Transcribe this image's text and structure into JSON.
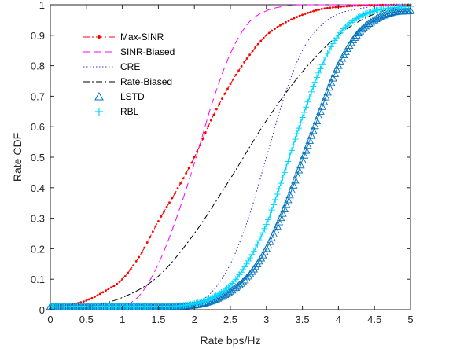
{
  "chart_data": {
    "type": "line",
    "title": "",
    "xlabel": "Rate bps/Hz",
    "ylabel": "Rate CDF",
    "xlim": [
      0,
      5
    ],
    "ylim": [
      0,
      1
    ],
    "xticks": [
      "0",
      "0.5",
      "1",
      "1.5",
      "2",
      "2.5",
      "3",
      "3.5",
      "4",
      "4.5",
      "5"
    ],
    "yticks": [
      "0",
      "0.1",
      "0.2",
      "0.3",
      "0.4",
      "0.5",
      "0.6",
      "0.7",
      "0.8",
      "0.9",
      "1"
    ],
    "grid": false,
    "legend_position": "top-left",
    "series": [
      {
        "name": "Max-SINR",
        "color": "#ff0000",
        "style": "dash-dot-marker",
        "x": [
          0,
          0.25,
          0.5,
          0.75,
          1.0,
          1.25,
          1.5,
          1.75,
          2.0,
          2.25,
          2.5,
          2.75,
          3.0,
          3.25,
          3.5,
          3.75,
          4.0,
          4.5,
          5.0
        ],
        "y": [
          0.01,
          0.015,
          0.03,
          0.06,
          0.1,
          0.18,
          0.29,
          0.39,
          0.5,
          0.63,
          0.74,
          0.83,
          0.9,
          0.94,
          0.967,
          0.985,
          0.993,
          0.999,
          1.0
        ]
      },
      {
        "name": "SINR-Biased",
        "color": "#ff00ff",
        "style": "dashed",
        "x": [
          0,
          0.75,
          1.0,
          1.25,
          1.5,
          1.75,
          2.0,
          2.25,
          2.5,
          2.75,
          3.0,
          3.25,
          3.5,
          4.0,
          5.0
        ],
        "y": [
          0,
          0.002,
          0.01,
          0.05,
          0.15,
          0.3,
          0.48,
          0.68,
          0.84,
          0.94,
          0.98,
          0.995,
          1.0,
          1.0,
          1.0
        ]
      },
      {
        "name": "CRE",
        "color": "#3333cc",
        "style": "dotted",
        "x": [
          0,
          1.5,
          2.0,
          2.25,
          2.5,
          2.75,
          3.0,
          3.25,
          3.5,
          3.75,
          4.0,
          4.25,
          4.5,
          5.0
        ],
        "y": [
          0,
          0.001,
          0.02,
          0.06,
          0.15,
          0.3,
          0.5,
          0.7,
          0.85,
          0.93,
          0.97,
          0.985,
          0.995,
          1.0
        ]
      },
      {
        "name": "Rate-Biased",
        "color": "#000000",
        "style": "dash-dot",
        "x": [
          0,
          0.5,
          1.0,
          1.5,
          2.0,
          2.5,
          3.0,
          3.5,
          4.0,
          4.5,
          5.0
        ],
        "y": [
          0.002,
          0.01,
          0.04,
          0.11,
          0.25,
          0.43,
          0.62,
          0.78,
          0.9,
          0.97,
          1.0
        ]
      },
      {
        "name": "LSTD",
        "color": "#0072bd",
        "style": "triangle-marker",
        "x": [
          0,
          1.5,
          2.0,
          2.25,
          2.5,
          2.75,
          3.0,
          3.25,
          3.5,
          3.75,
          4.0,
          4.25,
          4.5,
          4.75,
          5.0
        ],
        "y": [
          0.01,
          0.01,
          0.015,
          0.03,
          0.06,
          0.11,
          0.2,
          0.33,
          0.49,
          0.65,
          0.8,
          0.9,
          0.95,
          0.975,
          0.98
        ]
      },
      {
        "name": "RBL",
        "color": "#00d7ff",
        "style": "plus-marker",
        "x": [
          0,
          1.5,
          2.0,
          2.25,
          2.5,
          2.75,
          3.0,
          3.25,
          3.5,
          3.75,
          4.0,
          4.25,
          4.5,
          4.75,
          5.0
        ],
        "y": [
          0.01,
          0.01,
          0.02,
          0.04,
          0.08,
          0.16,
          0.28,
          0.45,
          0.63,
          0.79,
          0.9,
          0.955,
          0.98,
          0.99,
          0.995
        ]
      }
    ]
  }
}
